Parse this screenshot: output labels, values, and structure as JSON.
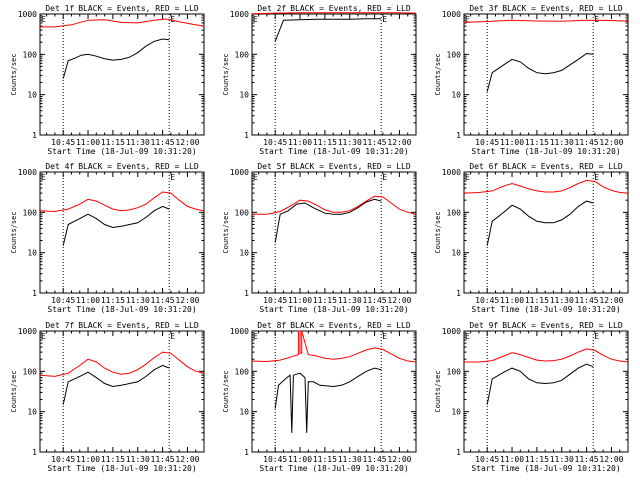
{
  "figure": {
    "title_text": "BLACK = Events, RED = LLD",
    "xlabel": "Start Time (18-Jul-09 10:31:20)",
    "ylabel": "Counts/sec",
    "x_tick_labels": [
      "10:45",
      "11:00",
      "11:15",
      "11:30",
      "11:45",
      "12:00"
    ],
    "y_tick_labels": [
      "1",
      "10",
      "100",
      "1000"
    ],
    "corner_marker_left": "E",
    "corner_marker_right": "E",
    "colors": {
      "events": "#000000",
      "lld": "#ff0000"
    }
  },
  "chart_data": [
    {
      "type": "line",
      "title": "Det 1f",
      "xlabel": "Start Time (18-Jul-09 10:31:20)",
      "ylabel": "Counts/sec",
      "x_unit": "time",
      "xlim": [
        "10:31",
        "12:10"
      ],
      "ylim": [
        1,
        1000
      ],
      "log_y": true,
      "vlines": [
        "10:45",
        "11:49"
      ],
      "series": [
        {
          "name": "Events",
          "x": [
            "10:45",
            "10:48",
            "10:52",
            "10:56",
            "11:00",
            "11:05",
            "11:10",
            "11:15",
            "11:20",
            "11:25",
            "11:30",
            "11:35",
            "11:40",
            "11:45",
            "11:49"
          ],
          "values": [
            25,
            70,
            80,
            95,
            100,
            90,
            78,
            72,
            75,
            85,
            110,
            160,
            210,
            240,
            230
          ]
        },
        {
          "name": "LLD",
          "x": [
            "10:31",
            "10:40",
            "10:50",
            "11:00",
            "11:10",
            "11:20",
            "11:30",
            "11:40",
            "11:47",
            "11:55",
            "12:03",
            "12:10"
          ],
          "values": [
            480,
            480,
            540,
            700,
            720,
            620,
            600,
            700,
            750,
            640,
            560,
            500
          ]
        }
      ]
    },
    {
      "type": "line",
      "title": "Det 2f",
      "xlabel": "Start Time (18-Jul-09 10:31:20)",
      "ylabel": "Counts/sec",
      "x_unit": "time",
      "xlim": [
        "10:31",
        "12:10"
      ],
      "ylim": [
        1,
        1000
      ],
      "log_y": true,
      "vlines": [
        "10:45",
        "11:49"
      ],
      "series": [
        {
          "name": "Events",
          "x": [
            "10:45",
            "10:50",
            "11:00",
            "11:10",
            "11:20",
            "11:30",
            "11:40",
            "11:49"
          ],
          "values": [
            210,
            700,
            720,
            740,
            740,
            740,
            760,
            760
          ]
        },
        {
          "name": "LLD",
          "x": [
            "10:31",
            "10:45",
            "11:00",
            "11:15",
            "11:30",
            "11:45",
            "12:00",
            "12:10"
          ],
          "values": [
            1020,
            1050,
            1080,
            1080,
            1080,
            1080,
            1080,
            1050
          ]
        }
      ]
    },
    {
      "type": "line",
      "title": "Det 3f",
      "xlabel": "Start Time (18-Jul-09 10:31:20)",
      "ylabel": "Counts/sec",
      "x_unit": "time",
      "xlim": [
        "10:31",
        "12:10"
      ],
      "ylim": [
        1,
        1000
      ],
      "log_y": true,
      "vlines": [
        "10:45",
        "11:49"
      ],
      "series": [
        {
          "name": "Events",
          "x": [
            "10:45",
            "10:48",
            "10:55",
            "11:00",
            "11:05",
            "11:10",
            "11:15",
            "11:20",
            "11:25",
            "11:30",
            "11:35",
            "11:40",
            "11:45",
            "11:49"
          ],
          "values": [
            12,
            35,
            55,
            75,
            65,
            45,
            35,
            33,
            35,
            40,
            55,
            75,
            105,
            100
          ]
        },
        {
          "name": "LLD",
          "x": [
            "10:31",
            "10:45",
            "11:00",
            "11:15",
            "11:30",
            "11:45",
            "12:00",
            "12:10"
          ],
          "values": [
            620,
            650,
            700,
            670,
            660,
            700,
            690,
            660
          ]
        }
      ]
    },
    {
      "type": "line",
      "title": "Det 4f",
      "xlabel": "Start Time (18-Jul-09 10:31:20)",
      "ylabel": "Counts/sec",
      "x_unit": "time",
      "xlim": [
        "10:31",
        "12:10"
      ],
      "ylim": [
        1,
        1000
      ],
      "log_y": true,
      "vlines": [
        "10:45",
        "11:49"
      ],
      "series": [
        {
          "name": "Events",
          "x": [
            "10:45",
            "10:48",
            "10:55",
            "11:00",
            "11:05",
            "11:10",
            "11:15",
            "11:20",
            "11:25",
            "11:30",
            "11:35",
            "11:40",
            "11:45",
            "11:49"
          ],
          "values": [
            15,
            50,
            70,
            90,
            70,
            50,
            42,
            45,
            50,
            55,
            75,
            110,
            140,
            120
          ]
        },
        {
          "name": "LLD",
          "x": [
            "10:31",
            "10:40",
            "10:48",
            "10:55",
            "11:00",
            "11:05",
            "11:10",
            "11:15",
            "11:20",
            "11:25",
            "11:30",
            "11:35",
            "11:40",
            "11:45",
            "11:50",
            "11:55",
            "12:00",
            "12:05",
            "12:10"
          ],
          "values": [
            110,
            105,
            120,
            160,
            210,
            190,
            150,
            120,
            110,
            115,
            130,
            160,
            230,
            320,
            300,
            200,
            140,
            120,
            110
          ]
        }
      ]
    },
    {
      "type": "line",
      "title": "Det 5f",
      "xlabel": "Start Time (18-Jul-09 10:31:20)",
      "ylabel": "Counts/sec",
      "x_unit": "time",
      "xlim": [
        "10:31",
        "12:10"
      ],
      "ylim": [
        1,
        1000
      ],
      "log_y": true,
      "vlines": [
        "10:45",
        "11:49"
      ],
      "series": [
        {
          "name": "Events",
          "x": [
            "10:45",
            "10:48",
            "10:53",
            "10:58",
            "11:03",
            "11:08",
            "11:15",
            "11:20",
            "11:25",
            "11:30",
            "11:35",
            "11:40",
            "11:45",
            "11:49"
          ],
          "values": [
            18,
            90,
            110,
            160,
            170,
            130,
            95,
            90,
            90,
            100,
            130,
            180,
            210,
            190
          ]
        },
        {
          "name": "LLD",
          "x": [
            "10:31",
            "10:40",
            "10:48",
            "10:55",
            "11:00",
            "11:05",
            "11:10",
            "11:15",
            "11:20",
            "11:25",
            "11:30",
            "11:35",
            "11:40",
            "11:45",
            "11:50",
            "11:55",
            "12:00",
            "12:05",
            "12:10"
          ],
          "values": [
            90,
            90,
            105,
            150,
            200,
            190,
            150,
            115,
            100,
            100,
            110,
            140,
            190,
            250,
            240,
            170,
            120,
            100,
            90
          ]
        }
      ]
    },
    {
      "type": "line",
      "title": "Det 6f",
      "xlabel": "Start Time (18-Jul-09 10:31:20)",
      "ylabel": "Counts/sec",
      "x_unit": "time",
      "xlim": [
        "10:31",
        "12:10"
      ],
      "ylim": [
        1,
        1000
      ],
      "log_y": true,
      "vlines": [
        "10:45",
        "11:49"
      ],
      "series": [
        {
          "name": "Events",
          "x": [
            "10:45",
            "10:48",
            "10:55",
            "11:00",
            "11:05",
            "11:10",
            "11:15",
            "11:20",
            "11:25",
            "11:30",
            "11:35",
            "11:40",
            "11:45",
            "11:49"
          ],
          "values": [
            15,
            60,
            100,
            150,
            120,
            80,
            60,
            55,
            55,
            65,
            90,
            140,
            190,
            170
          ]
        },
        {
          "name": "LLD",
          "x": [
            "10:31",
            "10:40",
            "10:48",
            "10:55",
            "11:00",
            "11:05",
            "11:10",
            "11:15",
            "11:20",
            "11:25",
            "11:30",
            "11:35",
            "11:40",
            "11:45",
            "11:50",
            "11:55",
            "12:00",
            "12:05",
            "12:10"
          ],
          "values": [
            300,
            310,
            340,
            450,
            520,
            450,
            380,
            340,
            320,
            320,
            340,
            410,
            520,
            620,
            580,
            430,
            350,
            310,
            300
          ]
        }
      ]
    },
    {
      "type": "line",
      "title": "Det 7f",
      "xlabel": "Start Time (18-Jul-09 10:31:20)",
      "ylabel": "Counts/sec",
      "x_unit": "time",
      "xlim": [
        "10:31",
        "12:10"
      ],
      "ylim": [
        1,
        1000
      ],
      "log_y": true,
      "vlines": [
        "10:45",
        "11:49"
      ],
      "series": [
        {
          "name": "Events",
          "x": [
            "10:45",
            "10:48",
            "10:55",
            "11:00",
            "11:05",
            "11:10",
            "11:15",
            "11:20",
            "11:25",
            "11:30",
            "11:35",
            "11:40",
            "11:45",
            "11:49"
          ],
          "values": [
            15,
            55,
            75,
            95,
            70,
            50,
            42,
            45,
            50,
            55,
            75,
            110,
            140,
            120
          ]
        },
        {
          "name": "LLD",
          "x": [
            "10:31",
            "10:40",
            "10:48",
            "10:55",
            "11:00",
            "11:05",
            "11:10",
            "11:15",
            "11:20",
            "11:25",
            "11:30",
            "11:35",
            "11:40",
            "11:45",
            "11:50",
            "11:55",
            "12:00",
            "12:05",
            "12:10"
          ],
          "values": [
            80,
            75,
            90,
            140,
            200,
            170,
            120,
            95,
            85,
            90,
            110,
            150,
            220,
            300,
            280,
            190,
            130,
            100,
            90
          ]
        }
      ]
    },
    {
      "type": "line",
      "title": "Det 8f",
      "xlabel": "Start Time (18-Jul-09 10:31:20)",
      "ylabel": "Counts/sec",
      "x_unit": "time",
      "xlim": [
        "10:31",
        "12:10"
      ],
      "ylim": [
        1,
        1000
      ],
      "log_y": true,
      "vlines": [
        "10:45",
        "11:49"
      ],
      "series": [
        {
          "name": "Events",
          "x": [
            "10:45",
            "10:47",
            "10:52",
            "10:54",
            "10:55",
            "10:56",
            "11:00",
            "11:03",
            "11:04",
            "11:05",
            "11:08",
            "11:12",
            "11:20",
            "11:25",
            "11:30",
            "11:35",
            "11:40",
            "11:45",
            "11:49"
          ],
          "values": [
            12,
            45,
            70,
            80,
            3,
            80,
            90,
            70,
            3,
            55,
            55,
            45,
            42,
            45,
            55,
            75,
            100,
            120,
            110
          ]
        },
        {
          "name": "LLD",
          "x": [
            "10:31",
            "10:40",
            "10:48",
            "10:55",
            "10:59",
            "10:59",
            "11:00",
            "11:00",
            "11:01",
            "11:01",
            "11:05",
            "11:10",
            "11:15",
            "11:20",
            "11:25",
            "11:30",
            "11:35",
            "11:40",
            "11:45",
            "11:50",
            "11:55",
            "12:00",
            "12:05",
            "12:10"
          ],
          "values": [
            180,
            175,
            190,
            230,
            260,
            1000,
            1000,
            280,
            280,
            1000,
            260,
            240,
            210,
            200,
            210,
            230,
            280,
            340,
            380,
            350,
            270,
            210,
            180,
            170
          ]
        }
      ]
    },
    {
      "type": "line",
      "title": "Det 9f",
      "xlabel": "Start Time (18-Jul-09 10:31:20)",
      "ylabel": "Counts/sec",
      "x_unit": "time",
      "xlim": [
        "10:31",
        "12:10"
      ],
      "ylim": [
        1,
        1000
      ],
      "log_y": true,
      "vlines": [
        "10:45",
        "11:49"
      ],
      "series": [
        {
          "name": "Events",
          "x": [
            "10:45",
            "10:48",
            "10:55",
            "11:00",
            "11:05",
            "11:10",
            "11:15",
            "11:20",
            "11:25",
            "11:30",
            "11:35",
            "11:40",
            "11:45",
            "11:49"
          ],
          "values": [
            15,
            65,
            95,
            120,
            100,
            65,
            52,
            50,
            52,
            60,
            85,
            120,
            150,
            130
          ]
        },
        {
          "name": "LLD",
          "x": [
            "10:31",
            "10:40",
            "10:48",
            "10:55",
            "11:00",
            "11:05",
            "11:10",
            "11:15",
            "11:20",
            "11:25",
            "11:30",
            "11:35",
            "11:40",
            "11:45",
            "11:50",
            "11:55",
            "12:00",
            "12:05",
            "12:10"
          ],
          "values": [
            170,
            170,
            185,
            240,
            290,
            260,
            220,
            190,
            180,
            185,
            200,
            240,
            300,
            360,
            330,
            250,
            200,
            180,
            170
          ]
        }
      ]
    }
  ]
}
